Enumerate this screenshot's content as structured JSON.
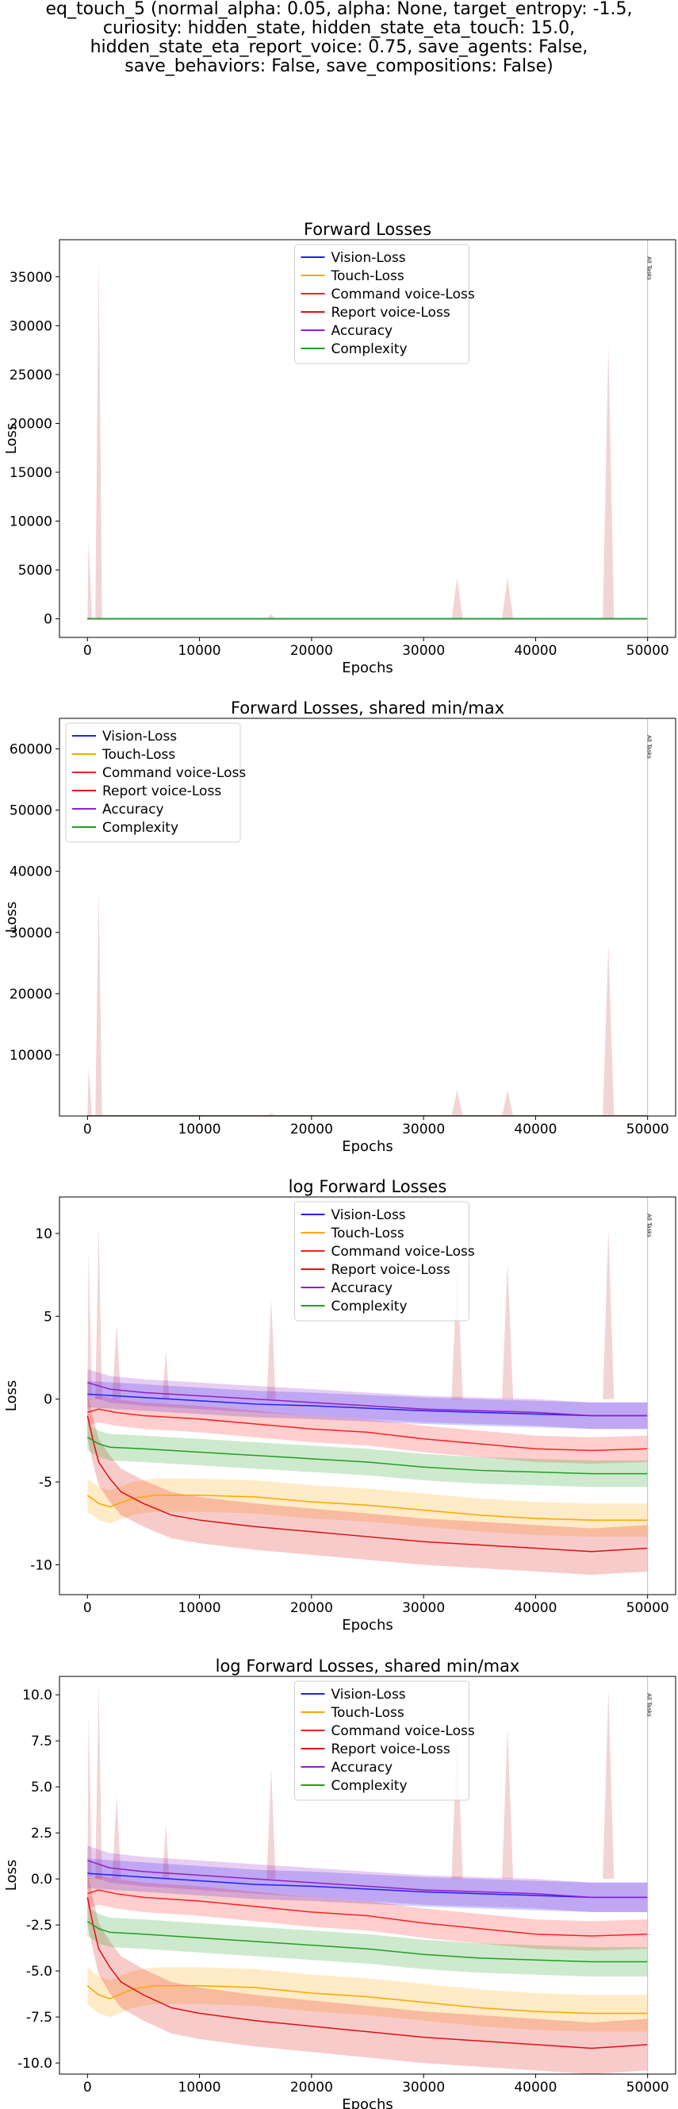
{
  "title_lines": [
    "eq_touch_5 (normal_alpha: 0.05, alpha: None, target_entropy: -1.5,",
    "curiosity: hidden_state, hidden_state_eta_touch: 15.0,",
    "hidden_state_eta_report_voice: 0.75, save_agents: False,",
    "save_behaviors: False, save_compositions: False)"
  ],
  "series_colors": {
    "Vision-Loss": "#2020ff",
    "Touch-Loss": "#ffa500",
    "Command voice-Loss": "#ff2020",
    "Report voice-Loss": "#dd1010",
    "Accuracy": "#9020c8",
    "Complexity": "#20a020"
  },
  "chart_data": [
    {
      "type": "line",
      "title": "Forward Losses",
      "xlabel": "Epochs",
      "ylabel": "Loss",
      "xlim": [
        -2500,
        52500
      ],
      "ylim": [
        -1900,
        38800
      ],
      "xticks": [
        0,
        10000,
        20000,
        30000,
        40000,
        50000
      ],
      "yticks": [
        0,
        5000,
        10000,
        15000,
        20000,
        25000,
        30000,
        35000
      ],
      "legend": "top-center",
      "annotation": {
        "x": 50000,
        "text": "All Tasks"
      },
      "series": [
        {
          "name": "Vision-Loss",
          "x": [
            0,
            50000
          ],
          "y": [
            0,
            0
          ]
        },
        {
          "name": "Touch-Loss",
          "x": [
            0,
            50000
          ],
          "y": [
            0,
            0
          ]
        },
        {
          "name": "Command voice-Loss",
          "x": [
            0,
            50000
          ],
          "y": [
            0,
            0
          ]
        },
        {
          "name": "Report voice-Loss",
          "x": [
            0,
            50000
          ],
          "y": [
            0,
            0
          ]
        },
        {
          "name": "Accuracy",
          "x": [
            0,
            50000
          ],
          "y": [
            0,
            0
          ]
        },
        {
          "name": "Complexity",
          "x": [
            0,
            50000
          ],
          "y": [
            0,
            0
          ]
        }
      ],
      "spike_band": {
        "x": [
          0,
          100,
          400,
          700,
          1000,
          1300,
          1600,
          16000,
          16400,
          16800,
          32500,
          33000,
          33500,
          37000,
          37500,
          38000,
          46000,
          46500,
          47000
        ],
        "y": [
          0,
          8000,
          0,
          0,
          37000,
          0,
          0,
          0,
          500,
          0,
          0,
          4200,
          0,
          0,
          4200,
          0,
          0,
          28000,
          0
        ]
      }
    },
    {
      "type": "line",
      "title": "Forward Losses, shared min/max",
      "xlabel": "Epochs",
      "ylabel": "Loss",
      "xlim": [
        -2500,
        52500
      ],
      "ylim": [
        0,
        65000
      ],
      "xticks": [
        0,
        10000,
        20000,
        30000,
        40000,
        50000
      ],
      "yticks": [
        10000,
        20000,
        30000,
        40000,
        50000,
        60000
      ],
      "legend": "top-left",
      "annotation": {
        "x": 50000,
        "text": "All Tasks"
      },
      "series": [
        {
          "name": "Vision-Loss",
          "x": [
            0,
            50000
          ],
          "y": [
            0,
            0
          ]
        },
        {
          "name": "Touch-Loss",
          "x": [
            0,
            50000
          ],
          "y": [
            0,
            0
          ]
        },
        {
          "name": "Command voice-Loss",
          "x": [
            0,
            50000
          ],
          "y": [
            0,
            0
          ]
        },
        {
          "name": "Report voice-Loss",
          "x": [
            0,
            50000
          ],
          "y": [
            0,
            0
          ]
        },
        {
          "name": "Accuracy",
          "x": [
            0,
            50000
          ],
          "y": [
            0,
            0
          ]
        },
        {
          "name": "Complexity",
          "x": [
            0,
            50000
          ],
          "y": [
            0,
            0
          ]
        }
      ],
      "spike_band": {
        "x": [
          0,
          100,
          400,
          700,
          1000,
          1300,
          1600,
          16000,
          16400,
          16800,
          32500,
          33000,
          33500,
          37000,
          37500,
          38000,
          46000,
          46500,
          47000
        ],
        "y": [
          0,
          8000,
          0,
          0,
          37000,
          0,
          0,
          0,
          500,
          0,
          0,
          4200,
          0,
          0,
          4200,
          0,
          0,
          28000,
          0
        ]
      }
    },
    {
      "type": "line",
      "title": "log Forward Losses",
      "xlabel": "Epochs",
      "ylabel": "Loss",
      "xlim": [
        -2500,
        52500
      ],
      "ylim": [
        -11.8,
        12.2
      ],
      "xticks": [
        0,
        10000,
        20000,
        30000,
        40000,
        50000
      ],
      "yticks": [
        -10,
        -5,
        0,
        5,
        10
      ],
      "legend": "top-center",
      "annotation": {
        "x": 50000,
        "text": "All Tasks"
      },
      "series": [
        {
          "name": "Vision-Loss",
          "x": [
            0,
            5000,
            10000,
            15000,
            20000,
            25000,
            30000,
            35000,
            40000,
            45000,
            50000
          ],
          "y": [
            0.3,
            0.1,
            -0.1,
            -0.3,
            -0.4,
            -0.55,
            -0.7,
            -0.8,
            -0.9,
            -1.0,
            -1.0
          ]
        },
        {
          "name": "Touch-Loss",
          "x": [
            0,
            1000,
            2000,
            4000,
            6000,
            10000,
            15000,
            20000,
            25000,
            30000,
            35000,
            40000,
            45000,
            50000
          ],
          "y": [
            -5.8,
            -6.3,
            -6.5,
            -6.0,
            -5.8,
            -5.8,
            -5.9,
            -6.2,
            -6.4,
            -6.7,
            -7.0,
            -7.2,
            -7.3,
            -7.3
          ]
        },
        {
          "name": "Command voice-Loss",
          "x": [
            0,
            1000,
            2500,
            5000,
            10000,
            15000,
            20000,
            25000,
            30000,
            35000,
            40000,
            45000,
            50000
          ],
          "y": [
            -0.8,
            -0.6,
            -0.8,
            -1.0,
            -1.2,
            -1.5,
            -1.8,
            -2.0,
            -2.4,
            -2.7,
            -3.0,
            -3.1,
            -3.0
          ]
        },
        {
          "name": "Report voice-Loss",
          "x": [
            0,
            500,
            1000,
            2000,
            3000,
            5000,
            7500,
            10000,
            15000,
            20000,
            25000,
            30000,
            35000,
            40000,
            45000,
            50000
          ],
          "y": [
            -1.0,
            -2.5,
            -3.8,
            -4.8,
            -5.6,
            -6.3,
            -7.0,
            -7.3,
            -7.7,
            -8.0,
            -8.3,
            -8.6,
            -8.8,
            -9.0,
            -9.2,
            -9.0
          ]
        },
        {
          "name": "Accuracy",
          "x": [
            0,
            2000,
            5000,
            10000,
            15000,
            20000,
            25000,
            30000,
            35000,
            40000,
            45000,
            50000
          ],
          "y": [
            1.0,
            0.6,
            0.4,
            0.2,
            0.0,
            -0.2,
            -0.4,
            -0.6,
            -0.7,
            -0.8,
            -1.0,
            -1.0
          ]
        },
        {
          "name": "Complexity",
          "x": [
            0,
            1000,
            2000,
            5000,
            10000,
            15000,
            20000,
            25000,
            30000,
            35000,
            40000,
            45000,
            50000
          ],
          "y": [
            -2.3,
            -2.7,
            -2.9,
            -3.0,
            -3.2,
            -3.4,
            -3.6,
            -3.8,
            -4.1,
            -4.3,
            -4.4,
            -4.5,
            -4.5
          ]
        }
      ],
      "spike_band": {
        "x": [
          0,
          100,
          400,
          700,
          1000,
          1300,
          1600,
          2200,
          2600,
          3000,
          6700,
          7000,
          7300,
          16000,
          16400,
          16800,
          32500,
          33000,
          33500,
          37000,
          37500,
          38000,
          46000,
          46500,
          47000
        ],
        "y": [
          0,
          9,
          0,
          0,
          10.5,
          0,
          0,
          0,
          4.5,
          0,
          0,
          3,
          0,
          0,
          6,
          0,
          0,
          8.2,
          0,
          0,
          8.2,
          0,
          0,
          10.3,
          0
        ]
      }
    },
    {
      "type": "line",
      "title": "log Forward Losses, shared min/max",
      "xlabel": "Epochs",
      "ylabel": "Loss",
      "xlim": [
        -2500,
        52500
      ],
      "ylim": [
        -10.6,
        11.0
      ],
      "xticks": [
        0,
        10000,
        20000,
        30000,
        40000,
        50000
      ],
      "yticks": [
        -10.0,
        -7.5,
        -5.0,
        -2.5,
        0.0,
        2.5,
        5.0,
        7.5,
        10.0
      ],
      "legend": "top-center",
      "annotation": {
        "x": 50000,
        "text": "All Tasks"
      },
      "series": [
        {
          "name": "Vision-Loss",
          "x": [
            0,
            5000,
            10000,
            15000,
            20000,
            25000,
            30000,
            35000,
            40000,
            45000,
            50000
          ],
          "y": [
            0.3,
            0.1,
            -0.1,
            -0.3,
            -0.4,
            -0.55,
            -0.7,
            -0.8,
            -0.9,
            -1.0,
            -1.0
          ]
        },
        {
          "name": "Touch-Loss",
          "x": [
            0,
            1000,
            2000,
            4000,
            6000,
            10000,
            15000,
            20000,
            25000,
            30000,
            35000,
            40000,
            45000,
            50000
          ],
          "y": [
            -5.8,
            -6.3,
            -6.5,
            -6.0,
            -5.8,
            -5.8,
            -5.9,
            -6.2,
            -6.4,
            -6.7,
            -7.0,
            -7.2,
            -7.3,
            -7.3
          ]
        },
        {
          "name": "Command voice-Loss",
          "x": [
            0,
            1000,
            2500,
            5000,
            10000,
            15000,
            20000,
            25000,
            30000,
            35000,
            40000,
            45000,
            50000
          ],
          "y": [
            -0.8,
            -0.6,
            -0.8,
            -1.0,
            -1.2,
            -1.5,
            -1.8,
            -2.0,
            -2.4,
            -2.7,
            -3.0,
            -3.1,
            -3.0
          ]
        },
        {
          "name": "Report voice-Loss",
          "x": [
            0,
            500,
            1000,
            2000,
            3000,
            5000,
            7500,
            10000,
            15000,
            20000,
            25000,
            30000,
            35000,
            40000,
            45000,
            50000
          ],
          "y": [
            -1.0,
            -2.5,
            -3.8,
            -4.8,
            -5.6,
            -6.3,
            -7.0,
            -7.3,
            -7.7,
            -8.0,
            -8.3,
            -8.6,
            -8.8,
            -9.0,
            -9.2,
            -9.0
          ]
        },
        {
          "name": "Accuracy",
          "x": [
            0,
            2000,
            5000,
            10000,
            15000,
            20000,
            25000,
            30000,
            35000,
            40000,
            45000,
            50000
          ],
          "y": [
            1.0,
            0.6,
            0.4,
            0.2,
            0.0,
            -0.2,
            -0.4,
            -0.6,
            -0.7,
            -0.8,
            -1.0,
            -1.0
          ]
        },
        {
          "name": "Complexity",
          "x": [
            0,
            1000,
            2000,
            5000,
            10000,
            15000,
            20000,
            25000,
            30000,
            35000,
            40000,
            45000,
            50000
          ],
          "y": [
            -2.3,
            -2.7,
            -2.9,
            -3.0,
            -3.2,
            -3.4,
            -3.6,
            -3.8,
            -4.1,
            -4.3,
            -4.4,
            -4.5,
            -4.5
          ]
        }
      ],
      "spike_band": {
        "x": [
          0,
          100,
          400,
          700,
          1000,
          1300,
          1600,
          2200,
          2600,
          3000,
          6700,
          7000,
          7300,
          16000,
          16400,
          16800,
          32500,
          33000,
          33500,
          37000,
          37500,
          38000,
          46000,
          46500,
          47000
        ],
        "y": [
          0,
          9,
          0,
          0,
          10.5,
          0,
          0,
          0,
          4.5,
          0,
          0,
          3,
          0,
          0,
          6,
          0,
          0,
          8.2,
          0,
          0,
          8.2,
          0,
          0,
          10.3,
          0
        ]
      }
    }
  ]
}
